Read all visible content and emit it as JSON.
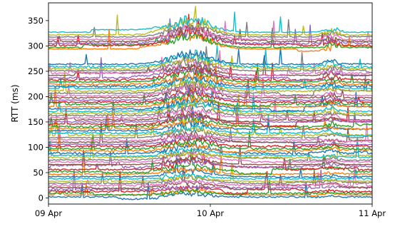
{
  "chart_data": {
    "type": "line",
    "title": "",
    "xlabel": "",
    "ylabel": "RTT (ms)",
    "x_ticks": [
      "09 Apr",
      "10 Apr",
      "11 Apr"
    ],
    "xlim": [
      "2019-04-09",
      "2019-04-11"
    ],
    "ylim": [
      -12,
      385
    ],
    "y_ticks": [
      0,
      50,
      100,
      150,
      200,
      250,
      300,
      350
    ],
    "grid": false,
    "legend": "none",
    "series_colors": [
      "#1f77b4",
      "#ff7f0e",
      "#2ca02c",
      "#d62728",
      "#9467bd",
      "#8c564b",
      "#e377c2",
      "#7f7f7f",
      "#bcbd22",
      "#17becf"
    ],
    "series_baselines_ms": [
      2,
      6,
      9,
      13,
      17,
      21,
      25,
      29,
      33,
      38,
      42,
      47,
      52,
      56,
      61,
      66,
      71,
      75,
      80,
      84,
      88,
      93,
      97,
      102,
      106,
      110,
      115,
      119,
      124,
      128,
      133,
      137,
      141,
      146,
      150,
      154,
      158,
      163,
      167,
      171,
      176,
      180,
      185,
      189,
      193,
      198,
      202,
      207,
      211,
      216,
      220,
      224,
      229,
      233,
      237,
      242,
      246,
      251,
      255,
      259,
      264,
      294,
      297,
      301,
      305,
      309,
      313,
      318,
      322,
      327
    ]
  }
}
